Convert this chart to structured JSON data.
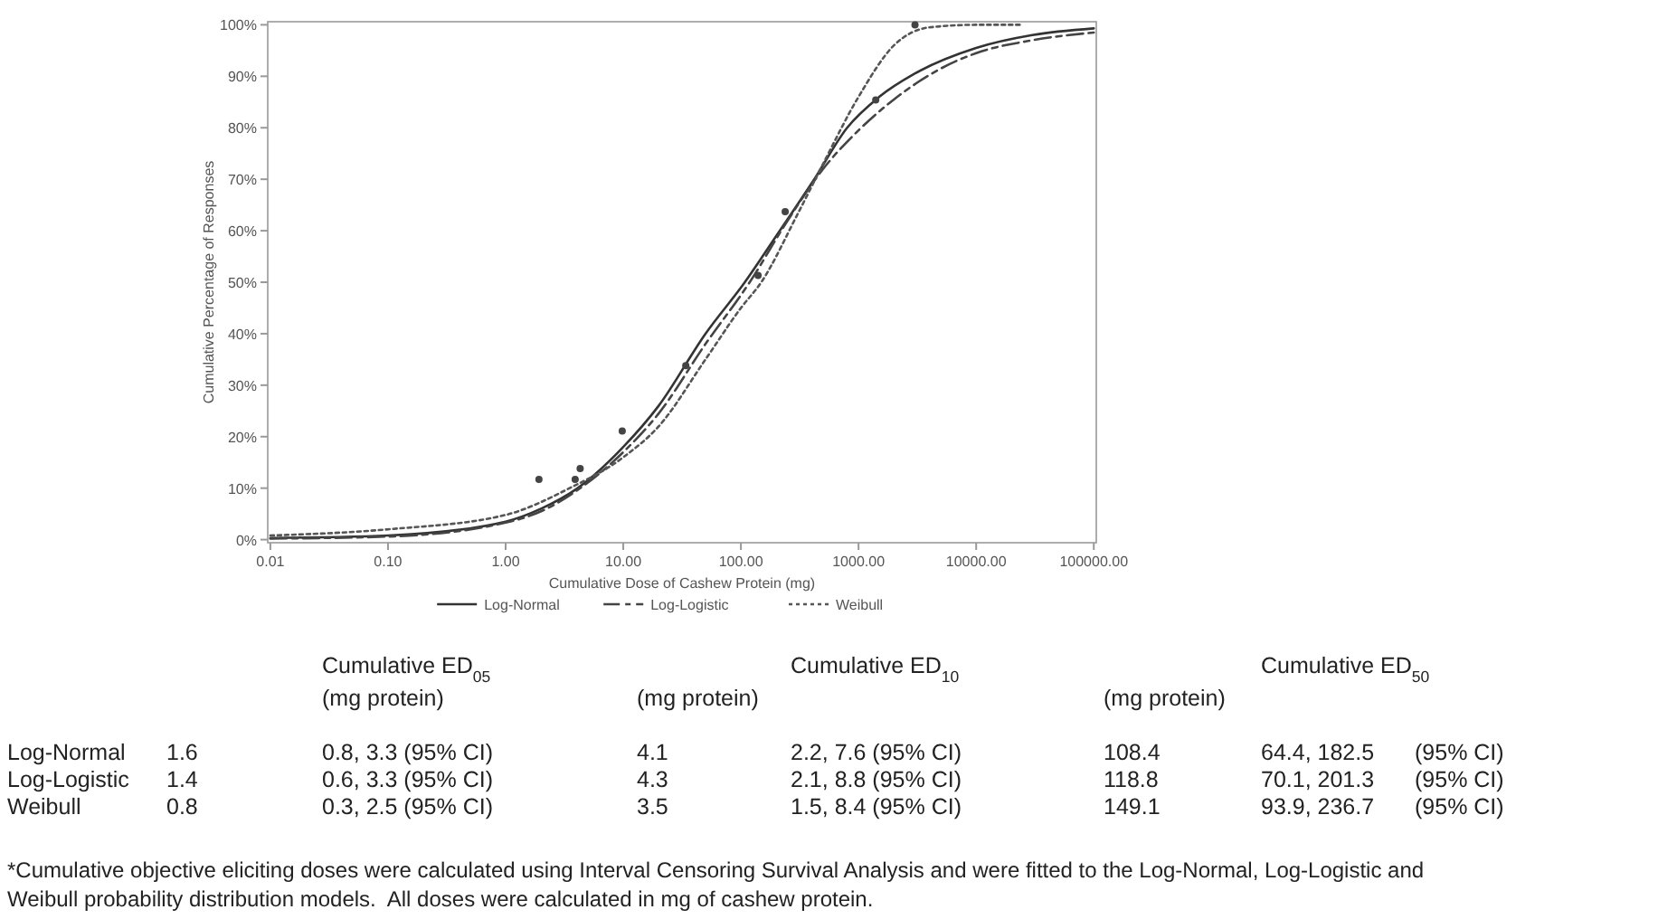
{
  "chart_data": {
    "type": "line",
    "xlabel": "Cumulative Dose of Cashew Protein (mg)",
    "ylabel": "Cumulative Percentage of Responses",
    "log": "x",
    "xlim": [
      0.0095,
      105000
    ],
    "xticks": [
      {
        "value": 0.01,
        "label": "0.01"
      },
      {
        "value": 0.1,
        "label": "0.10"
      },
      {
        "value": 1,
        "label": "1.00"
      },
      {
        "value": 10,
        "label": "10.00"
      },
      {
        "value": 100,
        "label": "100.00"
      },
      {
        "value": 1000,
        "label": "1000.00"
      },
      {
        "value": 10000,
        "label": "10000.00"
      },
      {
        "value": 100000,
        "label": "100000.00"
      }
    ],
    "ylim": [
      -0.6,
      100.6
    ],
    "yticks": [
      {
        "value": 0,
        "label": "0%"
      },
      {
        "value": 10,
        "label": "10%"
      },
      {
        "value": 20,
        "label": "20%"
      },
      {
        "value": 30,
        "label": "30%"
      },
      {
        "value": 40,
        "label": "40%"
      },
      {
        "value": 50,
        "label": "50%"
      },
      {
        "value": 60,
        "label": "60%"
      },
      {
        "value": 70,
        "label": "70%"
      },
      {
        "value": 80,
        "label": "80%"
      },
      {
        "value": 90,
        "label": "90%"
      },
      {
        "value": 100,
        "label": "100%"
      }
    ],
    "grid": false,
    "legend": "bottom",
    "series": [
      {
        "name": "Log-Normal",
        "color": "#333333",
        "line_style": "solid",
        "x": [
          0.01,
          0.1,
          1,
          2,
          4.1,
          10,
          20,
          50,
          108,
          200,
          420,
          800,
          1500,
          3000,
          10000,
          30000,
          100000
        ],
        "values": [
          0.3,
          0.8,
          3.5,
          6,
          10,
          18,
          26,
          40,
          50,
          59,
          70,
          80,
          86,
          90.5,
          95.5,
          98,
          99.3
        ]
      },
      {
        "name": "Log-Logistic",
        "color": "#444444",
        "line_style": "dashed",
        "x": [
          0.01,
          0.1,
          1,
          2,
          4.3,
          10,
          20,
          50,
          118.8,
          250,
          500,
          1000,
          2000,
          5000,
          10000,
          30000,
          100000
        ],
        "values": [
          0.2,
          0.6,
          3.3,
          5.5,
          10,
          17,
          24.5,
          38,
          50,
          62,
          72,
          79.5,
          85.5,
          91.5,
          94.5,
          97,
          98.5
        ]
      },
      {
        "name": "Weibull",
        "color": "#555555",
        "line_style": "dotted",
        "x": [
          0.01,
          0.1,
          1,
          3.5,
          10,
          20,
          50,
          100,
          149,
          300,
          500,
          1000,
          2000,
          4000,
          10000,
          25000
        ],
        "values": [
          0.8,
          2,
          4.8,
          10,
          16,
          22,
          35,
          45,
          50,
          63,
          73,
          86,
          96,
          99.5,
          100,
          100
        ]
      },
      {
        "type": "scatter",
        "marker": "circle",
        "color": "#444444",
        "x": [
          1.92,
          3.9,
          4.3,
          9.8,
          34,
          140,
          238,
          1400,
          3020
        ],
        "values": [
          11.7,
          11.7,
          13.8,
          21.1,
          33.8,
          51.3,
          63.7,
          85.4,
          100
        ]
      }
    ],
    "annotations": [
      "Cumulative ED$_{05}$",
      "Cumulative ED$_{10}$",
      "Cumulative ED$_{50}$",
      "(mg protein)",
      "(mg protein)",
      "(mg protein)",
      "Log-Normal",
      "1.6",
      "0.8, 3.3 (95% CI)",
      "4.1",
      "2.2, 7.6 (95% CI)",
      "108.4",
      "64.4, 182.5",
      "(95% CI)",
      "Log-Logistic",
      "1.4",
      "0.6, 3.3 (95% CI)",
      "4.3",
      "2.1, 8.8 (95% CI)",
      "118.8",
      "70.1, 201.3",
      "(95% CI)",
      "Weibull",
      "0.8",
      "0.3, 2.5 (95% CI)",
      "3.5",
      "1.5, 8.4 (95% CI)",
      "149.1",
      "93.9, 236.7",
      "(95% CI)",
      "*Cumulative objective eliciting doses were calculated using Interval Censoring Survival Analysis and were fitted to the Log-Normal, Log-Logistic and Weibull probability distribution models.  All doses were calculated in mg of cashew protein."
    ]
  }
}
